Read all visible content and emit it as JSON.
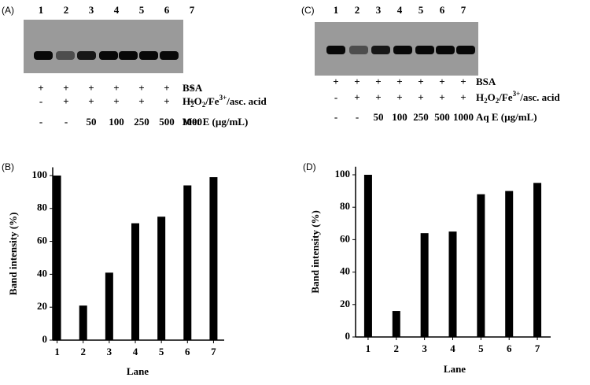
{
  "gels": [
    {
      "label": "(A)",
      "lanes": [
        "1",
        "2",
        "3",
        "4",
        "5",
        "6",
        "7"
      ],
      "rows": [
        {
          "signs": [
            "+",
            "+",
            "+",
            "+",
            "+",
            "+",
            "+"
          ],
          "label": "BSA"
        },
        {
          "signs": [
            "-",
            "+",
            "+",
            "+",
            "+",
            "+",
            "+"
          ],
          "label": [
            "H",
            "2",
            "O",
            "2",
            "/Fe",
            "3+",
            "/asc. acid"
          ]
        },
        {
          "signs": [
            "-",
            "-",
            "50",
            "100",
            "250",
            "500",
            "1000"
          ],
          "label": "Met E (µg/mL)"
        }
      ]
    },
    {
      "label": "(C)",
      "lanes": [
        "1",
        "2",
        "3",
        "4",
        "5",
        "6",
        "7"
      ],
      "rows": [
        {
          "signs": [
            "+",
            "+",
            "+",
            "+",
            "+",
            "+",
            "+"
          ],
          "label": "BSA"
        },
        {
          "signs": [
            "-",
            "+",
            "+",
            "+",
            "+",
            "+",
            "+"
          ],
          "label": [
            "H",
            "2",
            "O",
            "2",
            "/Fe",
            "3+",
            "/asc. acid"
          ]
        },
        {
          "signs": [
            "-",
            "-",
            "50",
            "100",
            "250",
            "500",
            "1000"
          ],
          "label": "Aq E (µg/mL)"
        }
      ]
    }
  ],
  "chart_data": [
    {
      "type": "bar",
      "panel_label": "(B)",
      "x_label": "Lane",
      "y_label": "Band intensity (%)",
      "categories": [
        "1",
        "2",
        "3",
        "4",
        "5",
        "6",
        "7"
      ],
      "values": [
        100,
        21,
        41,
        71,
        75,
        94,
        99
      ],
      "color": "#000000",
      "ylim": [
        0,
        105
      ],
      "yticks": [
        0,
        20,
        40,
        60,
        80,
        100
      ]
    },
    {
      "type": "bar",
      "panel_label": "(D)",
      "x_label": "Lane",
      "y_label": "Band intensity (%)",
      "categories": [
        "1",
        "2",
        "3",
        "4",
        "5",
        "6",
        "7"
      ],
      "values": [
        100,
        16,
        64,
        65,
        88,
        90,
        95
      ],
      "color": "#000000",
      "ylim": [
        0,
        105
      ],
      "yticks": [
        0,
        20,
        40,
        60,
        80,
        100
      ]
    }
  ]
}
